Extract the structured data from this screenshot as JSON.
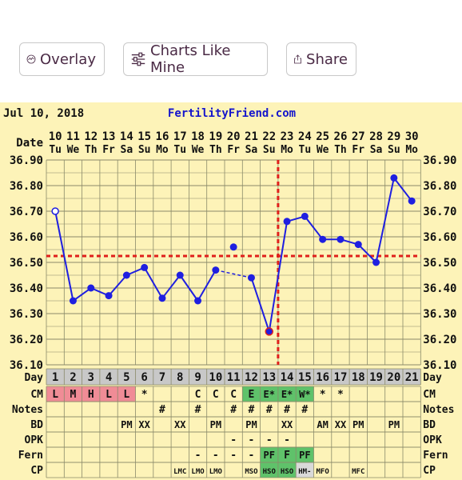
{
  "toolbar": {
    "overlay_label": "Overlay",
    "charts_like_mine_label": "Charts Like Mine",
    "share_label": "Share",
    "overlay_icon": "chart-line-icon",
    "charts_icon": "sliders-icon",
    "share_icon": "share-icon"
  },
  "chart_header": {
    "date": "Jul 10, 2018",
    "site": "FertilityFriend.com"
  },
  "row_labels": {
    "date": "Date",
    "day": "Day",
    "cm": "CM",
    "notes": "Notes",
    "bd": "BD",
    "opk": "OPK",
    "fern": "Fern",
    "cp": "CP"
  },
  "colors": {
    "background": "#fdf3b8",
    "grid": "#8a8a6a",
    "line": "#1f1fe0",
    "coverline": "#e0201c",
    "site_text": "#1515cc",
    "day_row": "#c8c8c8",
    "cm_pink": "#f08c96",
    "fertile_green": "#5fc26a",
    "gray_cell": "#d9d9d9"
  },
  "chart_data": {
    "type": "line",
    "dates": [
      "10",
      "11",
      "12",
      "13",
      "14",
      "15",
      "16",
      "17",
      "18",
      "19",
      "20",
      "21",
      "22",
      "23",
      "24",
      "25",
      "26",
      "27",
      "28",
      "29",
      "30"
    ],
    "weekdays": [
      "Tu",
      "We",
      "Th",
      "Fr",
      "Sa",
      "Su",
      "Mo",
      "Tu",
      "We",
      "Th",
      "Fr",
      "Sa",
      "Su",
      "Mo",
      "Tu",
      "We",
      "Th",
      "Fr",
      "Sa",
      "Su",
      "Mo"
    ],
    "days": [
      "1",
      "2",
      "3",
      "4",
      "5",
      "6",
      "7",
      "8",
      "9",
      "10",
      "11",
      "12",
      "13",
      "14",
      "15",
      "16",
      "17",
      "18",
      "19",
      "20",
      "21"
    ],
    "temps": [
      36.7,
      36.35,
      36.4,
      36.37,
      36.45,
      36.48,
      36.36,
      36.45,
      36.35,
      36.47,
      36.56,
      36.44,
      36.23,
      36.66,
      36.68,
      36.59,
      36.59,
      36.57,
      36.5,
      36.83,
      36.74
    ],
    "y_ticks": [
      "36.90",
      "36.80",
      "36.70",
      "36.60",
      "36.50",
      "36.40",
      "36.30",
      "36.20",
      "36.10"
    ],
    "ylim": [
      36.1,
      36.9
    ],
    "coverline": 36.525,
    "ovulation_day_index": 12,
    "grid": true
  },
  "rows": {
    "cm": [
      "L",
      "M",
      "H",
      "L",
      "L",
      "*",
      "",
      "",
      "C",
      "C",
      "C",
      "E",
      "E*",
      "E*",
      "W*",
      "*",
      "*",
      "",
      "",
      "",
      ""
    ],
    "notes": [
      "",
      "",
      "",
      "",
      "",
      "",
      "#",
      "",
      "#",
      "",
      "#",
      "#",
      "#",
      "#",
      "#",
      "",
      "",
      "",
      "",
      "",
      ""
    ],
    "bd": [
      "",
      "",
      "",
      "",
      "PM",
      "XX",
      "",
      "XX",
      "",
      "PM",
      "",
      "PM",
      "",
      "XX",
      "",
      "AM",
      "XX",
      "PM",
      "",
      "PM",
      ""
    ],
    "opk": [
      "",
      "",
      "",
      "",
      "",
      "",
      "",
      "",
      "",
      "",
      "-",
      "-",
      "-",
      "-",
      "",
      "",
      "",
      "",
      "",
      "",
      ""
    ],
    "fern": [
      "",
      "",
      "",
      "",
      "",
      "",
      "",
      "",
      "-",
      "-",
      "-",
      "-",
      "PF",
      "F",
      "PF",
      "",
      "",
      "",
      "",
      "",
      ""
    ],
    "cp": [
      "",
      "",
      "",
      "",
      "",
      "",
      "",
      "LMC",
      "LMO",
      "LMO",
      "",
      "MSO",
      "HSO",
      "HSO",
      "HM-",
      "MFO",
      "",
      "MFC",
      "",
      "",
      ""
    ]
  }
}
